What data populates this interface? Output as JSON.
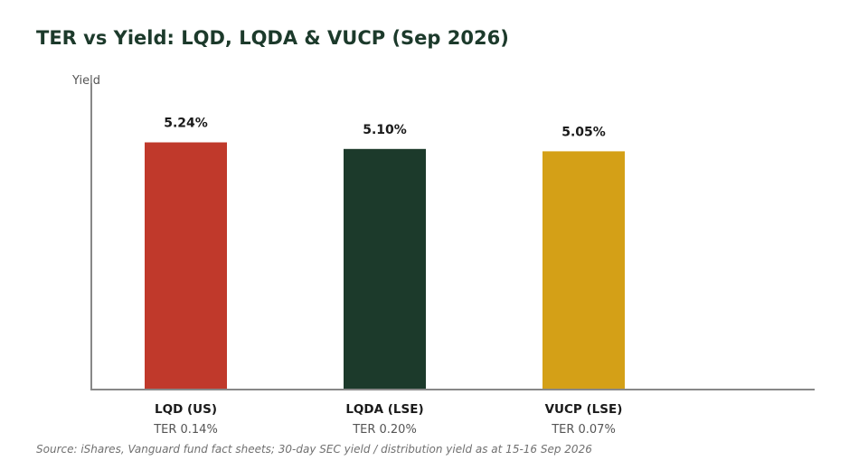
{
  "chart_data": {
    "type": "bar",
    "title": "TER vs Yield: LQD, LQDA & VUCP (Sep 2026)",
    "ylabel": "Yield",
    "xlabel": "",
    "ylim": [
      0,
      6.5
    ],
    "grid": false,
    "categories": [
      "LQD (US)",
      "LQDA (LSE)",
      "VUCP (LSE)"
    ],
    "values": [
      5.24,
      5.1,
      5.05
    ],
    "value_labels": [
      "5.24%",
      "5.10%",
      "5.05%"
    ],
    "sublabels": [
      "TER 0.14%",
      "TER 0.20%",
      "TER 0.07%"
    ],
    "colors": [
      "#c0392b",
      "#1c3a2b",
      "#d4a017"
    ]
  },
  "footer": {
    "source": "Source: iShares, Vanguard fund fact sheets; 30-day SEC yield / distribution yield as at 15-16 Sep 2026"
  }
}
